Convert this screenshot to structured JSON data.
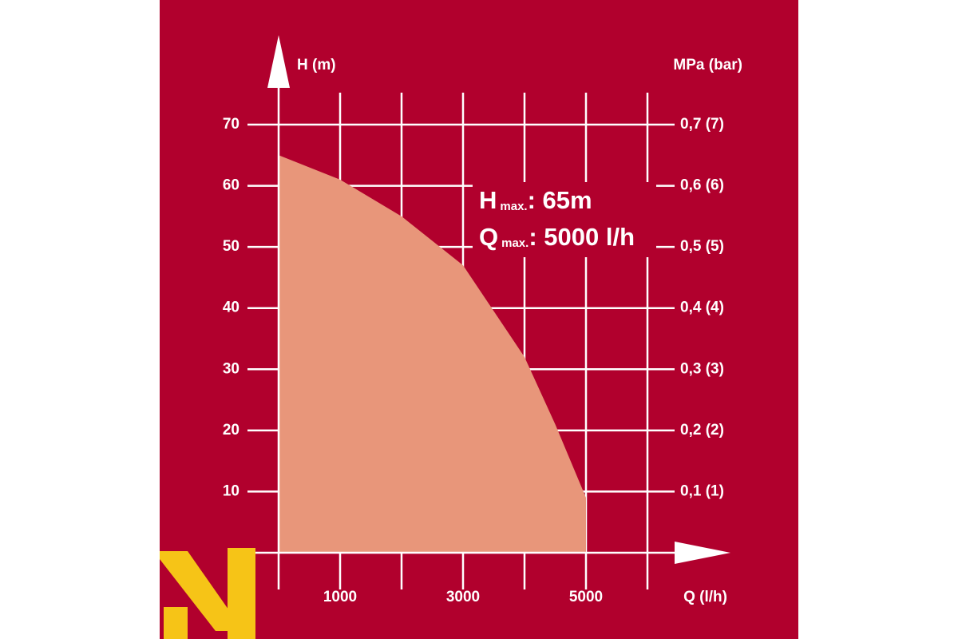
{
  "chart_data": {
    "type": "area",
    "ylabel": "H (m)",
    "y2label": "MPa (bar)",
    "xlabel": "Q (l/h)",
    "x": [
      0,
      1000,
      2000,
      3000,
      4000,
      4500,
      5000,
      5000
    ],
    "series": [
      {
        "values": [
          65,
          61,
          55,
          47,
          32,
          21,
          9,
          0
        ],
        "color": "#e8967a"
      }
    ],
    "xlim": [
      0,
      6000
    ],
    "xticks": [
      1000,
      3000,
      5000
    ],
    "xminor_ticks": [
      2000,
      4000,
      6000
    ],
    "ylim": [
      0,
      70
    ],
    "yticks": [
      10,
      20,
      30,
      40,
      50,
      60,
      70
    ],
    "y2lim": [
      0,
      0.7
    ],
    "y2ticks": [
      {
        "value": 0.1,
        "label": "0,1 (1)"
      },
      {
        "value": 0.2,
        "label": "0,2 (2)"
      },
      {
        "value": 0.3,
        "label": "0,3 (3)"
      },
      {
        "value": 0.4,
        "label": "0,4 (4)"
      },
      {
        "value": 0.5,
        "label": "0,5 (5)"
      },
      {
        "value": 0.6,
        "label": "0,6 (6)"
      },
      {
        "value": 0.7,
        "label": "0,7 (7)"
      }
    ],
    "annotations": [
      {
        "main": "H",
        "sub": "max.",
        "rest": ": 65m"
      },
      {
        "main": "Q",
        "sub": "max.",
        "rest": ": 5000 l/h"
      }
    ],
    "background": "#b1002d",
    "grid": true
  }
}
